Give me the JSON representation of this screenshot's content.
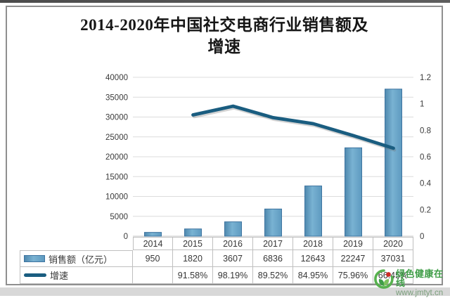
{
  "watermark": {
    "brand": "绿色健康在线",
    "site": "www.jmtyt.cn",
    "brand_color": "#3f9d47"
  },
  "chart_data": {
    "type": "bar+line combo with data table",
    "title_lines": [
      "2014-2020年中国社交电商行业销售额及",
      "增速"
    ],
    "categories": [
      "2014",
      "2015",
      "2016",
      "2017",
      "2018",
      "2019",
      "2020"
    ],
    "series": [
      {
        "name": "销售额（亿元）",
        "type": "bar",
        "axis": "left",
        "values": [
          950,
          1820,
          3607,
          6836,
          12643,
          22247,
          37031
        ],
        "color": "#5e9ac0",
        "border_color": "#3e74a0"
      },
      {
        "name": "增速",
        "type": "line",
        "axis": "right",
        "values": [
          null,
          0.9158,
          0.9819,
          0.8952,
          0.8495,
          0.7596,
          0.6645
        ],
        "color": "#1a5d80"
      }
    ],
    "left_axis": {
      "min": 0,
      "max": 40000,
      "tick_values": [
        0,
        5000,
        10000,
        15000,
        20000,
        25000,
        30000,
        35000,
        40000
      ],
      "tick_labels": [
        "0",
        "5000",
        "10000",
        "15000",
        "20000",
        "25000",
        "30000",
        "35000",
        "40000"
      ]
    },
    "right_axis": {
      "min": 0,
      "max": 1.2,
      "tick_values": [
        0,
        0.2,
        0.4,
        0.6,
        0.8,
        1.0,
        1.2
      ],
      "tick_labels": [
        "0",
        "0.2",
        "0.4",
        "0.6",
        "0.8",
        "1",
        "1.2"
      ]
    },
    "grid": true,
    "legend_position": "table-left",
    "table_rows": [
      {
        "label": "销售额（亿元）",
        "swatch": "bar",
        "values": [
          "950",
          "1820",
          "3607",
          "6836",
          "12643",
          "22247",
          "37031"
        ]
      },
      {
        "label": "增速",
        "swatch": "line",
        "values": [
          "",
          "91.58%",
          "98.19%",
          "89.52%",
          "84.95%",
          "75.96%",
          "66.45%"
        ]
      }
    ]
  }
}
